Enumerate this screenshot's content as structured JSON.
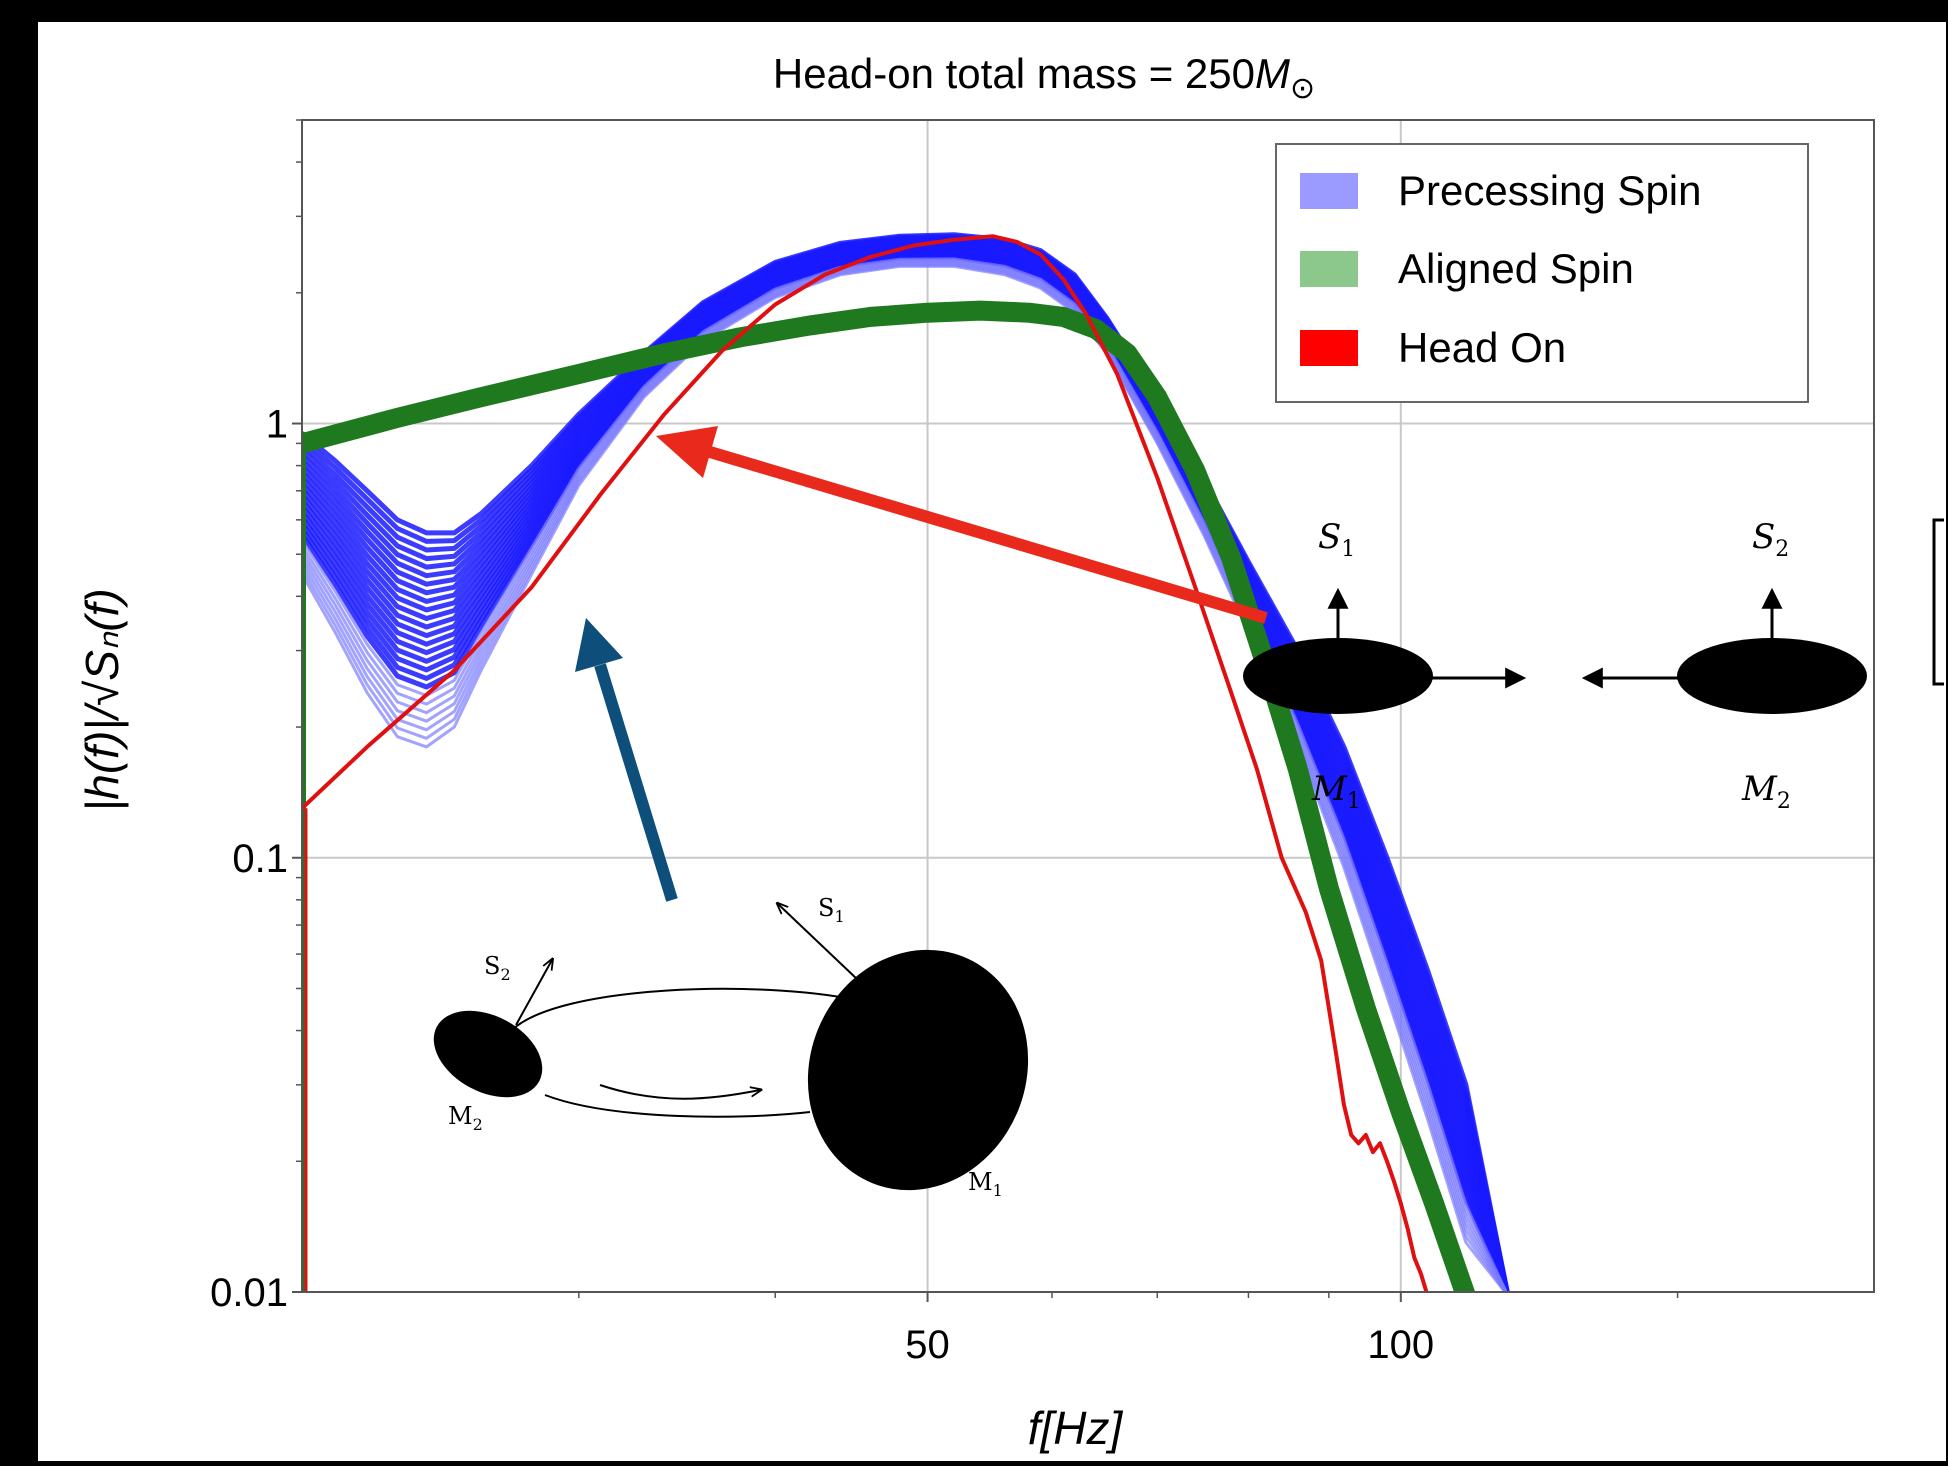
{
  "colors": {
    "frame": "#000000",
    "background": "#ffffff",
    "precessing": "#0000ff",
    "precessing_light": "#8c8cff",
    "aligned": "#1f7a1f",
    "headon": "#e01010",
    "arrow_red": "#e8291c",
    "arrow_blue": "#0d4f7a",
    "grid": "#c8c8c8"
  },
  "chart_data": {
    "type": "line",
    "title": "Head-on total mass = 250",
    "title_symbol": "M",
    "title_subscript": "⊙",
    "xlabel": "f[Hz]",
    "ylabel": "|h(f)|/√Sₙ(f)",
    "x_scale": "log",
    "y_scale": "log",
    "xlim": [
      20,
      200
    ],
    "ylim": [
      0.01,
      5
    ],
    "xticks_labeled": [
      50,
      100
    ],
    "xticks_minor": [
      30,
      40,
      60,
      70,
      80,
      90,
      150
    ],
    "yticks_labeled": [
      0.01,
      0.1,
      1
    ],
    "ytick_labels": [
      "0.01",
      "0.1",
      "1"
    ],
    "xtick_labels": [
      "50",
      "100"
    ],
    "grid": true,
    "legend_position": "top-right",
    "legend": [
      "Precessing Spin",
      "Aligned Spin",
      "Head On"
    ],
    "series": [
      {
        "name": "Head On",
        "x": [
          20,
          22,
          25,
          28,
          31,
          34,
          37,
          40,
          43,
          46,
          49,
          52,
          55,
          57,
          59,
          61,
          63,
          66,
          70,
          74,
          78,
          81,
          84,
          87,
          89,
          90,
          91,
          92,
          93,
          94,
          95,
          96,
          97,
          98,
          99,
          100,
          101,
          102,
          103,
          104
        ],
        "y": [
          0.13,
          0.18,
          0.27,
          0.42,
          0.69,
          1.05,
          1.47,
          1.88,
          2.2,
          2.42,
          2.57,
          2.65,
          2.7,
          2.62,
          2.45,
          2.15,
          1.8,
          1.3,
          0.75,
          0.42,
          0.24,
          0.16,
          0.1,
          0.075,
          0.058,
          0.045,
          0.035,
          0.027,
          0.023,
          0.022,
          0.023,
          0.021,
          0.022,
          0.02,
          0.018,
          0.016,
          0.014,
          0.012,
          0.011,
          0.0098
        ]
      },
      {
        "name": "Aligned Spin",
        "x": [
          20,
          23,
          26,
          30,
          34,
          38,
          42,
          46,
          50,
          54,
          58,
          61,
          64,
          67,
          70,
          74,
          78,
          82,
          86,
          90,
          95,
          100,
          105,
          110
        ],
        "y": [
          0.9,
          1.03,
          1.15,
          1.3,
          1.45,
          1.58,
          1.68,
          1.76,
          1.8,
          1.82,
          1.8,
          1.76,
          1.65,
          1.45,
          1.15,
          0.78,
          0.49,
          0.28,
          0.16,
          0.085,
          0.045,
          0.026,
          0.016,
          0.0098
        ]
      },
      {
        "name": "Precessing Spin",
        "x": [
          20,
          21,
          22,
          23,
          24,
          25,
          26,
          28,
          30,
          33,
          36,
          40,
          44,
          48,
          52,
          56,
          59,
          62,
          65,
          70,
          75,
          80,
          86,
          92,
          98,
          104,
          110,
          117
        ],
        "y_upper": [
          0.95,
          0.82,
          0.7,
          0.6,
          0.56,
          0.56,
          0.62,
          0.8,
          1.05,
          1.45,
          1.9,
          2.35,
          2.6,
          2.7,
          2.72,
          2.65,
          2.5,
          2.2,
          1.75,
          1.15,
          0.74,
          0.48,
          0.3,
          0.18,
          0.1,
          0.055,
          0.03,
          0.0098
        ],
        "y_lower": [
          0.45,
          0.33,
          0.24,
          0.19,
          0.18,
          0.2,
          0.27,
          0.45,
          0.72,
          1.15,
          1.55,
          1.95,
          2.2,
          2.3,
          2.3,
          2.2,
          2.05,
          1.8,
          1.45,
          0.9,
          0.55,
          0.33,
          0.18,
          0.095,
          0.048,
          0.025,
          0.013,
          0.0098
        ]
      }
    ]
  },
  "legend": {
    "items": [
      {
        "label": "Precessing Spin",
        "color": "#9a9aff"
      },
      {
        "label": "Aligned Spin",
        "color": "#8cc88c"
      },
      {
        "label": "Head On",
        "color": "#ff0000"
      }
    ]
  },
  "headon_diagram": {
    "s1": "S",
    "s1_sub": "1",
    "s2": "S",
    "s2_sub": "2",
    "m1": "M",
    "m1_sub": "1",
    "m2": "M",
    "m2_sub": "2"
  },
  "orbit_diagram": {
    "s1": "S",
    "s1_sub": "1",
    "s2": "S",
    "s2_sub": "2",
    "m1": "M",
    "m1_sub": "1",
    "m2": "M",
    "m2_sub": "2"
  }
}
